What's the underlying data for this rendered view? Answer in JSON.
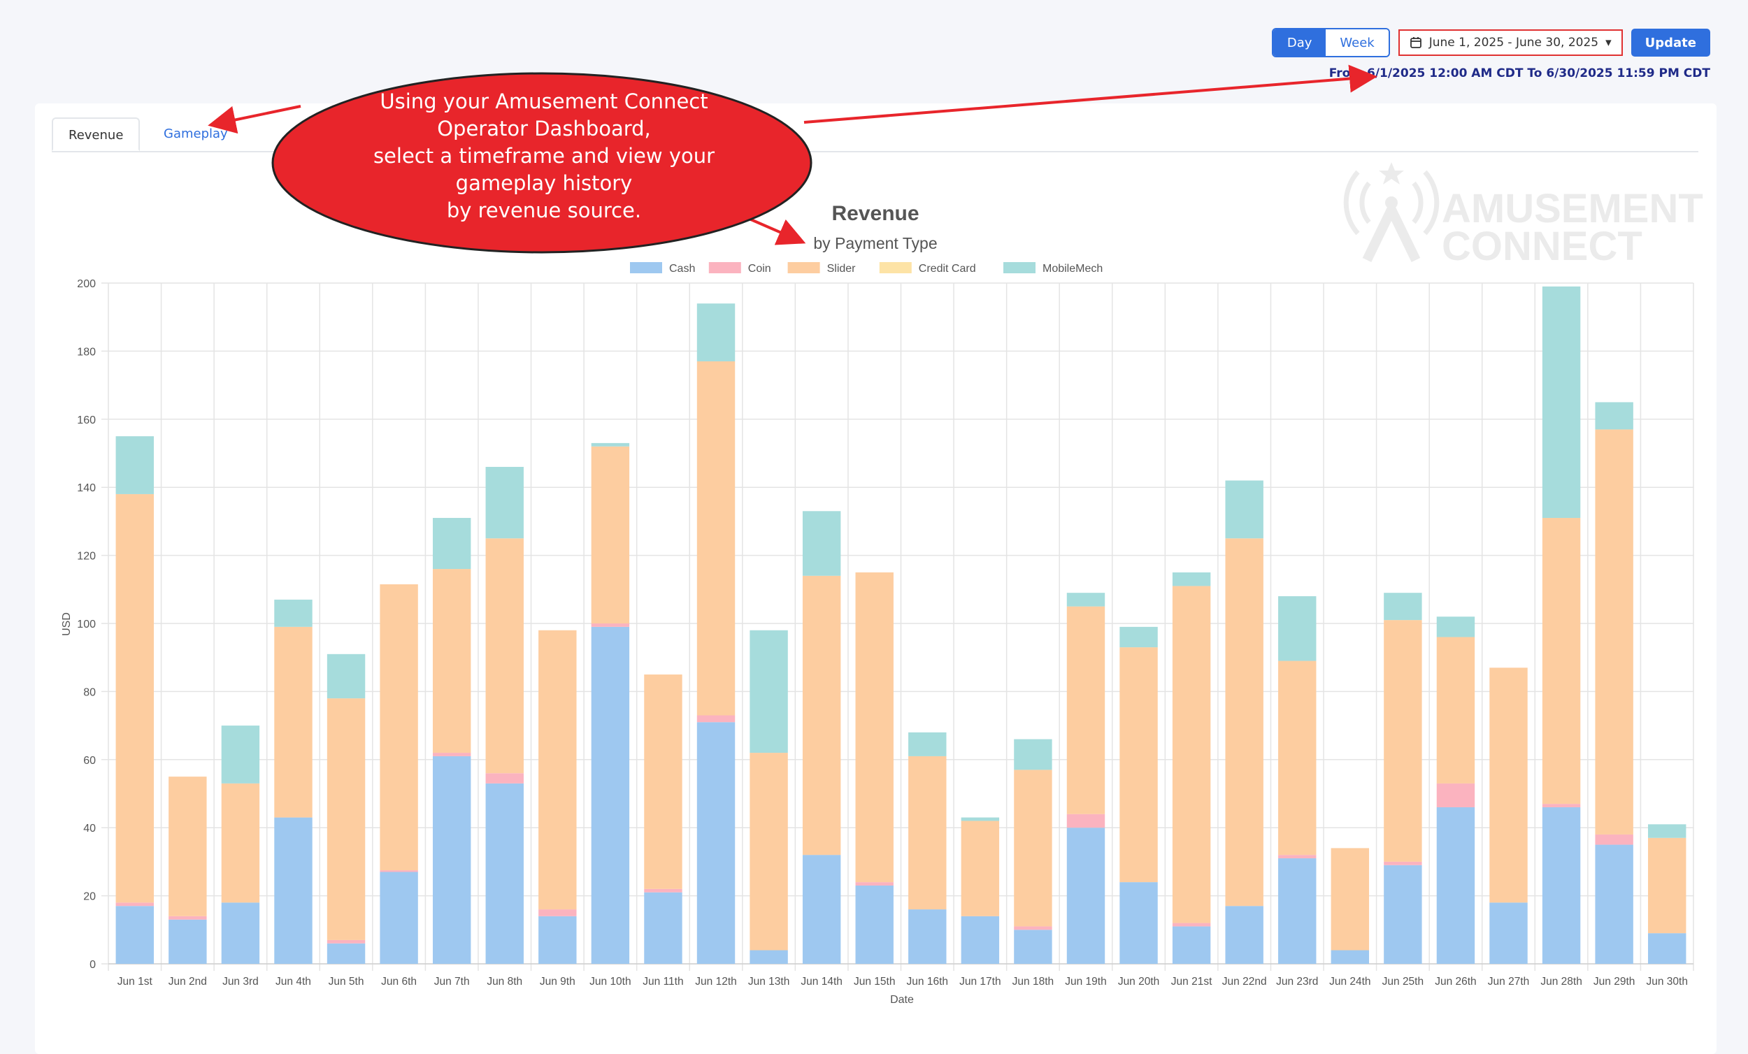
{
  "controls": {
    "day_label": "Day",
    "week_label": "Week",
    "date_range": "June 1, 2025 - June 30, 2025",
    "update_label": "Update",
    "range_text": "From 6/1/2025 12:00 AM CDT To 6/30/2025 11:59 PM CDT"
  },
  "tabs": [
    {
      "label": "Revenue",
      "active": true
    },
    {
      "label": "Gameplay",
      "active": false
    }
  ],
  "callout": {
    "lines": [
      "Using your Amusement Connect",
      "Operator Dashboard,",
      "select a timeframe and view your",
      "gameplay history",
      "by revenue source."
    ],
    "color": "#e8252b"
  },
  "watermark": {
    "line1": "AMUSEMENT",
    "line2": "CONNECT"
  },
  "chart_data": {
    "type": "bar",
    "stacked": true,
    "title": "Revenue",
    "subtitle": "by Payment Type",
    "xlabel": "Date",
    "ylabel": "USD",
    "ylim": [
      0,
      200
    ],
    "ytick_step": 20,
    "grid": true,
    "legend_position": "top",
    "categories": [
      "Jun 1st",
      "Jun 2nd",
      "Jun 3rd",
      "Jun 4th",
      "Jun 5th",
      "Jun 6th",
      "Jun 7th",
      "Jun 8th",
      "Jun 9th",
      "Jun 10th",
      "Jun 11th",
      "Jun 12th",
      "Jun 13th",
      "Jun 14th",
      "Jun 15th",
      "Jun 16th",
      "Jun 17th",
      "Jun 18th",
      "Jun 19th",
      "Jun 20th",
      "Jun 21st",
      "Jun 22nd",
      "Jun 23rd",
      "Jun 24th",
      "Jun 25th",
      "Jun 26th",
      "Jun 27th",
      "Jun 28th",
      "Jun 29th",
      "Jun 30th"
    ],
    "series": [
      {
        "name": "Cash",
        "color": "#9ec8f0",
        "values": [
          17,
          13,
          18,
          43,
          6,
          27,
          61,
          53,
          14,
          99,
          21,
          71,
          4,
          32,
          23,
          16,
          14,
          10,
          40,
          24,
          11,
          17,
          31,
          4,
          29,
          46,
          18,
          46,
          35,
          9
        ]
      },
      {
        "name": "Coin",
        "color": "#fbb3bf",
        "values": [
          1,
          1,
          0,
          0,
          1,
          0.5,
          1,
          3,
          2,
          1,
          1,
          2,
          0,
          0,
          1,
          0,
          0,
          1,
          4,
          0,
          1,
          0,
          1,
          0,
          1,
          7,
          0,
          1,
          3,
          0
        ]
      },
      {
        "name": "Slider",
        "color": "#fdcda0",
        "values": [
          120,
          41,
          35,
          56,
          71,
          84,
          54,
          69,
          82,
          52,
          63,
          104,
          58,
          82,
          91,
          45,
          28,
          46,
          61,
          69,
          99,
          108,
          57,
          30,
          71,
          43,
          69,
          84,
          119,
          28
        ]
      },
      {
        "name": "Credit Card",
        "color": "#fde3a6",
        "values": [
          0,
          0,
          0,
          0,
          0,
          0,
          0,
          0,
          0,
          0,
          0,
          0,
          0,
          0,
          0,
          0,
          0,
          0,
          0,
          0,
          0,
          0,
          0,
          0,
          0,
          0,
          0,
          0,
          0,
          0
        ]
      },
      {
        "name": "MobileMech",
        "color": "#a6dcdc",
        "values": [
          17,
          0,
          17,
          8,
          13,
          0,
          15,
          21,
          0,
          1,
          0,
          17,
          36,
          19,
          0,
          7,
          1,
          9,
          4,
          6,
          4,
          17,
          19,
          0,
          8,
          6,
          0,
          68,
          8,
          4
        ]
      }
    ]
  }
}
